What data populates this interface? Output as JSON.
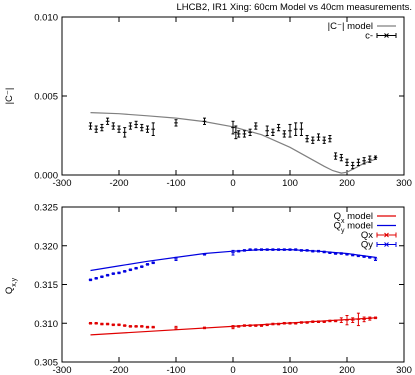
{
  "title": "LHCB2, IR1 Xing: 60cm Model vs 40cm measurements.",
  "chart_data": [
    {
      "type": "scatter",
      "title": "",
      "xlabel": "",
      "ylabel": "|C⁻|",
      "xlim": [
        -300,
        300
      ],
      "ylim": [
        0.0,
        0.01
      ],
      "xticks": [
        "-300",
        "-200",
        "-100",
        "0",
        "100",
        "200",
        "300"
      ],
      "yticks": [
        "0.000",
        "0.005",
        "0.010"
      ],
      "ytick_values": [
        0.0,
        0.005,
        0.01
      ],
      "legend_position": "top-right",
      "series": [
        {
          "name": "|C⁻| model",
          "kind": "line",
          "color": "#808080",
          "x": [
            -250,
            -200,
            -150,
            -100,
            -50,
            0,
            50,
            100,
            130,
            160,
            175,
            190,
            200,
            215,
            230,
            250
          ],
          "y": [
            0.00395,
            0.00388,
            0.00375,
            0.0036,
            0.00338,
            0.00305,
            0.00255,
            0.00175,
            0.00115,
            0.00055,
            0.00028,
            0.00012,
            0.00018,
            0.00045,
            0.00075,
            0.001
          ]
        },
        {
          "name": "c-",
          "kind": "errorbar",
          "color": "#000000",
          "x": [
            -250,
            -240,
            -230,
            -220,
            -210,
            -200,
            -190,
            -180,
            -170,
            -160,
            -150,
            -140,
            -100,
            -50,
            0,
            5,
            10,
            20,
            30,
            40,
            60,
            70,
            80,
            90,
            100,
            110,
            120,
            130,
            140,
            150,
            160,
            170,
            180,
            190,
            200,
            210,
            220,
            230,
            240,
            250
          ],
          "y": [
            0.0031,
            0.0029,
            0.003,
            0.0034,
            0.0031,
            0.0029,
            0.0027,
            0.0031,
            0.0032,
            0.003,
            0.0029,
            0.0029,
            0.0033,
            0.0034,
            0.003,
            0.0027,
            0.0026,
            0.0026,
            0.0027,
            0.0031,
            0.0028,
            0.0027,
            0.003,
            0.0026,
            0.0028,
            0.0029,
            0.0029,
            0.0023,
            0.0022,
            0.0024,
            0.0022,
            0.0023,
            0.0012,
            0.0011,
            0.0008,
            0.0006,
            0.0008,
            0.0009,
            0.001,
            0.0011
          ],
          "err": [
            0.0002,
            0.0002,
            0.0002,
            0.0002,
            0.0002,
            0.0002,
            0.0003,
            0.0002,
            0.0002,
            0.0002,
            0.0002,
            0.0004,
            0.0002,
            0.0002,
            0.0004,
            0.0004,
            0.0002,
            0.0002,
            0.0002,
            0.0002,
            0.0003,
            0.0002,
            0.0002,
            0.0002,
            0.0004,
            0.0004,
            0.0004,
            0.0002,
            0.0002,
            0.0002,
            0.0002,
            0.0002,
            0.0002,
            0.0002,
            0.0002,
            0.0002,
            0.0002,
            0.0002,
            0.0002,
            0.0001
          ]
        }
      ]
    },
    {
      "type": "scatter",
      "title": "",
      "xlabel": "",
      "ylabel": "Q",
      "ylabel_sub": "x,y",
      "xlim": [
        -300,
        300
      ],
      "ylim": [
        0.305,
        0.325
      ],
      "xticks": [
        "-300",
        "-200",
        "-100",
        "0",
        "100",
        "200",
        "300"
      ],
      "yticks": [
        "0.305",
        "0.310",
        "0.315",
        "0.320",
        "0.325"
      ],
      "ytick_values": [
        0.305,
        0.31,
        0.315,
        0.32,
        0.325
      ],
      "legend_position": "top-right",
      "series": [
        {
          "name": "Q",
          "name_sub": "x",
          "name_suffix": " model",
          "kind": "line",
          "color": "#e00000",
          "x": [
            -250,
            250
          ],
          "y": [
            0.3085,
            0.3107
          ]
        },
        {
          "name": "Q",
          "name_sub": "y",
          "name_suffix": " model",
          "kind": "line",
          "color": "#0000e0",
          "x": [
            -250,
            -200,
            -150,
            -100,
            -50,
            0,
            50,
            100,
            150,
            200,
            250
          ],
          "y": [
            0.3168,
            0.3174,
            0.318,
            0.3185,
            0.319,
            0.3193,
            0.3195,
            0.3195,
            0.3193,
            0.319,
            0.3185
          ]
        },
        {
          "name": "Qx",
          "kind": "errorbar",
          "color": "#e00000",
          "x": [
            -250,
            -240,
            -230,
            -220,
            -210,
            -200,
            -190,
            -180,
            -170,
            -160,
            -150,
            -140,
            -100,
            -50,
            0,
            10,
            20,
            30,
            40,
            50,
            60,
            70,
            80,
            90,
            100,
            110,
            120,
            130,
            140,
            150,
            160,
            170,
            180,
            190,
            200,
            210,
            220,
            230,
            240,
            250
          ],
          "y": [
            0.31,
            0.31,
            0.3099,
            0.3099,
            0.3098,
            0.3098,
            0.3097,
            0.3096,
            0.3096,
            0.3096,
            0.3095,
            0.3095,
            0.3094,
            0.3094,
            0.3095,
            0.3096,
            0.3097,
            0.3097,
            0.3097,
            0.3097,
            0.3098,
            0.3099,
            0.3099,
            0.31,
            0.31,
            0.31,
            0.3101,
            0.3101,
            0.3102,
            0.3102,
            0.3102,
            0.3103,
            0.3103,
            0.3104,
            0.3104,
            0.3104,
            0.3105,
            0.3105,
            0.3106,
            0.3107
          ],
          "err": [
            0.0001,
            0.0001,
            0.0001,
            0.0001,
            0.0001,
            0.0001,
            0.0001,
            0.0001,
            0.0001,
            0.0001,
            0.0001,
            0.0001,
            0.0002,
            0.0001,
            0.0002,
            0.0001,
            0.0001,
            0.0001,
            0.0001,
            0.0001,
            0.0001,
            0.0001,
            0.0001,
            0.0001,
            0.0001,
            0.0001,
            0.0001,
            0.0001,
            0.0001,
            0.0001,
            0.0001,
            0.0001,
            0.0001,
            0.0003,
            0.0006,
            0.0003,
            0.0008,
            0.0003,
            0.0002,
            0.0001
          ]
        },
        {
          "name": "Qy",
          "kind": "errorbar",
          "color": "#0000e0",
          "x": [
            -250,
            -240,
            -230,
            -220,
            -210,
            -200,
            -190,
            -180,
            -170,
            -160,
            -150,
            -140,
            -100,
            -50,
            0,
            10,
            20,
            30,
            40,
            50,
            60,
            70,
            80,
            90,
            100,
            110,
            120,
            130,
            140,
            150,
            160,
            170,
            180,
            190,
            200,
            210,
            220,
            230,
            240,
            250
          ],
          "y": [
            0.3156,
            0.3158,
            0.316,
            0.3162,
            0.3164,
            0.3165,
            0.3167,
            0.3169,
            0.3171,
            0.3173,
            0.3176,
            0.3178,
            0.3183,
            0.3189,
            0.3191,
            0.3193,
            0.3194,
            0.3195,
            0.3195,
            0.3195,
            0.3195,
            0.3195,
            0.3195,
            0.3195,
            0.3195,
            0.3195,
            0.3194,
            0.3194,
            0.3193,
            0.3193,
            0.3192,
            0.3191,
            0.319,
            0.319,
            0.3189,
            0.3188,
            0.3187,
            0.3186,
            0.3185,
            0.3183
          ],
          "err": [
            0.0001,
            0.0001,
            0.0001,
            0.0001,
            0.0001,
            0.0001,
            0.0001,
            0.0001,
            0.0001,
            0.0001,
            0.0001,
            0.0001,
            0.0002,
            0.0001,
            0.0003,
            0.0001,
            0.0001,
            0.0001,
            0.0001,
            0.0001,
            0.0001,
            0.0001,
            0.0001,
            0.0001,
            0.0001,
            0.0001,
            0.0001,
            0.0001,
            0.0001,
            0.0001,
            0.0001,
            0.0001,
            0.0001,
            0.0001,
            0.0001,
            0.0001,
            0.0001,
            0.0001,
            0.0001,
            0.0002
          ]
        }
      ]
    }
  ]
}
